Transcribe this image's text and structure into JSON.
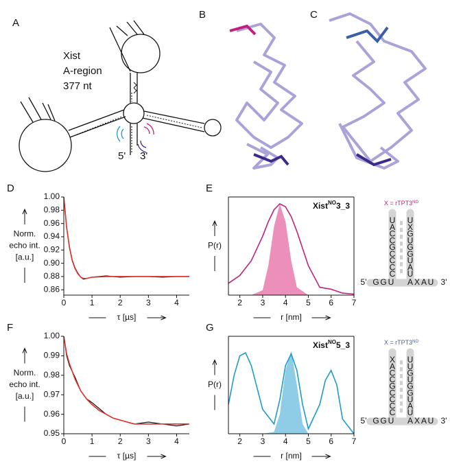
{
  "panels": [
    "A",
    "B",
    "C",
    "D",
    "E",
    "F",
    "G"
  ],
  "panel_a": {
    "label_lines": [
      "Xist",
      "A-region",
      "377 nt"
    ],
    "end5": "5'",
    "end3": "3'"
  },
  "chart_data": [
    {
      "type": "line",
      "frame": "axes",
      "ylabel": [
        "Norm.",
        "echo int.",
        "[a.u.]"
      ],
      "xlabel": "τ [µs]",
      "x": [
        0,
        0.1,
        0.2,
        0.3,
        0.4,
        0.5,
        0.6,
        0.7,
        0.8,
        1.0,
        1.5,
        2,
        2.5,
        3,
        3.5,
        4,
        4.45
      ],
      "series": [
        {
          "name": "data",
          "style": "line",
          "color": "#111111",
          "values": [
            1.0,
            0.955,
            0.925,
            0.905,
            0.893,
            0.885,
            0.879,
            0.876,
            0.877,
            0.879,
            0.881,
            0.879,
            0.88,
            0.88,
            0.879,
            0.88,
            0.88
          ]
        },
        {
          "name": "fit",
          "style": "line",
          "color": "#e0302a",
          "values": [
            1.0,
            0.954,
            0.924,
            0.904,
            0.892,
            0.884,
            0.879,
            0.877,
            0.877,
            0.879,
            0.88,
            0.88,
            0.88,
            0.88,
            0.88,
            0.88,
            0.88
          ]
        }
      ],
      "xlim": [
        0,
        4.45
      ],
      "xticks": [
        0,
        1,
        2,
        3,
        4
      ],
      "ylim": [
        0.852,
        1.0
      ],
      "yticks": [
        {
          "value": 0.86,
          "label": "0.86"
        },
        {
          "value": 0.88,
          "label": "0.88"
        },
        {
          "value": 0.9,
          "label": "0.90"
        },
        {
          "value": 0.92,
          "label": "0.92"
        },
        {
          "value": 0.94,
          "label": "0.94"
        },
        {
          "value": 0.96,
          "label": "0.96"
        },
        {
          "value": 0.98,
          "label": "0.98"
        },
        {
          "value": 1.0,
          "label": "1.00"
        }
      ]
    },
    {
      "type": "line",
      "frame": "box",
      "title_parts": [
        "Xist",
        "NO",
        "3_3"
      ],
      "ylabel": [
        "P(r)"
      ],
      "xlabel": "r [nm]",
      "x": [
        1.5,
        2,
        2.5,
        3,
        3.25,
        3.5,
        3.75,
        4,
        4.25,
        4.5,
        5,
        5.5,
        6,
        6.5,
        7
      ],
      "series": [
        {
          "name": "distribution",
          "style": "area",
          "color": "#ec8fbb",
          "values": [
            0,
            0,
            0,
            0.05,
            0.3,
            0.7,
            0.93,
            0.75,
            0.35,
            0.08,
            0,
            0,
            0,
            0,
            0
          ]
        },
        {
          "name": "simulation",
          "style": "line",
          "color": "#c2207e",
          "values": [
            0.12,
            0.2,
            0.35,
            0.6,
            0.75,
            0.87,
            0.93,
            0.9,
            0.8,
            0.65,
            0.3,
            0.08,
            0.06,
            0.02,
            0.01
          ]
        }
      ],
      "xlim": [
        1.5,
        7
      ],
      "xticks": [
        2,
        3,
        4,
        5,
        6,
        7
      ],
      "ylim": [
        0,
        1
      ],
      "rna": {
        "legend_parts": [
          "X = rTPT3",
          "NO"
        ],
        "color": "#c2207e",
        "left": [
          "U",
          "A",
          "C",
          "C",
          "G",
          "C",
          "C",
          "C",
          "C"
        ],
        "right": [
          "U",
          "X",
          "G",
          "U",
          "G",
          "G",
          "U",
          "A",
          "U"
        ],
        "bottom_left": [
          "G",
          "G",
          "U"
        ],
        "bottom_right": [
          "A",
          "X",
          "A",
          "U"
        ],
        "end5": "5'",
        "end3": "3'"
      }
    },
    {
      "type": "line",
      "frame": "axes",
      "ylabel": [
        "Norm.",
        "echo int.",
        "[a.u.]"
      ],
      "xlabel": "τ [µs]",
      "x": [
        0,
        0.1,
        0.2,
        0.4,
        0.6,
        0.8,
        1.0,
        1.25,
        1.5,
        1.75,
        2,
        2.5,
        3,
        3.5,
        4,
        4.45
      ],
      "series": [
        {
          "name": "data",
          "style": "line",
          "color": "#111111",
          "values": [
            1.0,
            0.99,
            0.985,
            0.979,
            0.972,
            0.968,
            0.966,
            0.963,
            0.96,
            0.958,
            0.957,
            0.955,
            0.956,
            0.955,
            0.954,
            0.955
          ]
        },
        {
          "name": "fit",
          "style": "line",
          "color": "#e0302a",
          "values": [
            1.0,
            0.991,
            0.986,
            0.978,
            0.972,
            0.968,
            0.965,
            0.962,
            0.96,
            0.958,
            0.957,
            0.955,
            0.955,
            0.955,
            0.955,
            0.955
          ]
        }
      ],
      "xlim": [
        0,
        4.45
      ],
      "xticks": [
        0,
        1,
        2,
        3,
        4
      ],
      "ylim": [
        0.95,
        1.0
      ],
      "yticks": [
        {
          "value": 0.95,
          "label": "0.95"
        },
        {
          "value": 0.96,
          "label": "0.96"
        },
        {
          "value": 0.97,
          "label": "0.97"
        },
        {
          "value": 0.98,
          "label": "0.98"
        },
        {
          "value": 0.99,
          "label": "0.99"
        },
        {
          "value": 1.0,
          "label": "1.00"
        }
      ]
    },
    {
      "type": "line",
      "frame": "box",
      "title_parts": [
        "Xist",
        "NO",
        "5_3"
      ],
      "ylabel": [
        "P(r)"
      ],
      "xlabel": "r [nm]",
      "x": [
        1.5,
        1.75,
        2,
        2.25,
        2.5,
        3,
        3.5,
        3.75,
        4,
        4.25,
        4.5,
        4.75,
        5,
        5.5,
        5.75,
        6,
        6.25,
        6.5,
        7
      ],
      "series": [
        {
          "name": "distribution",
          "style": "area",
          "color": "#8fcde6",
          "values": [
            0,
            0,
            0,
            0,
            0,
            0,
            0.02,
            0.2,
            0.65,
            0.85,
            0.5,
            0.1,
            0,
            0,
            0,
            0,
            0,
            0,
            0
          ]
        },
        {
          "name": "simulation",
          "style": "line",
          "color": "#1a9cc7",
          "values": [
            0.3,
            0.6,
            0.8,
            0.83,
            0.7,
            0.25,
            0.1,
            0.35,
            0.7,
            0.82,
            0.65,
            0.3,
            0.05,
            0.3,
            0.55,
            0.65,
            0.5,
            0.15,
            0
          ]
        }
      ],
      "xlim": [
        1.5,
        7
      ],
      "xticks": [
        2,
        3,
        4,
        5,
        6,
        7
      ],
      "ylim": [
        0,
        1
      ],
      "rna": {
        "legend_parts": [
          "X = rTPT3",
          "NO"
        ],
        "color": "#3a5fa8",
        "left": [
          "X",
          "A",
          "C",
          "C",
          "G",
          "C",
          "C",
          "C",
          "C"
        ],
        "right": [
          "U",
          "U",
          "G",
          "U",
          "G",
          "G",
          "U",
          "A",
          "U"
        ],
        "bottom_left": [
          "G",
          "G",
          "U"
        ],
        "bottom_right": [
          "A",
          "X",
          "A",
          "U"
        ],
        "end5": "5'",
        "end3": "3'"
      }
    }
  ]
}
